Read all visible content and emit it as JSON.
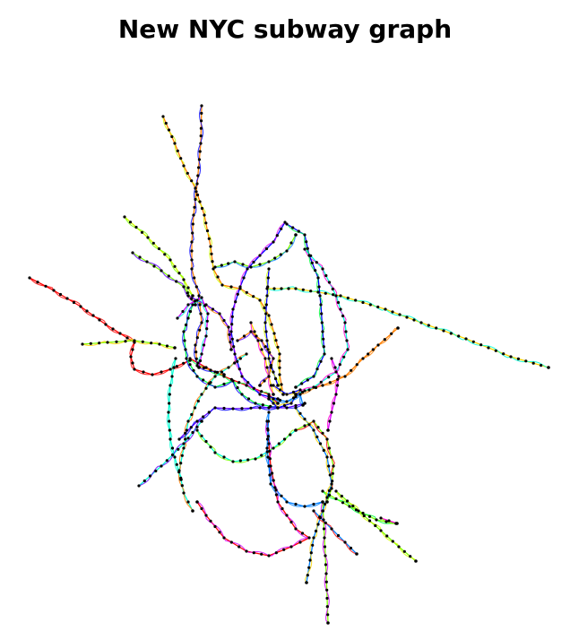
{
  "title": "New NYC subway graph",
  "graph": {
    "description_colors": [
      "#ff0000",
      "#ff7f00",
      "#ffd400",
      "#d4ff00",
      "#7fff00",
      "#00ff40",
      "#00ffd4",
      "#0080ff",
      "#0000ff",
      "#6000ff",
      "#d400ff",
      "#ff00d4"
    ],
    "stop_color": "#000000"
  }
}
